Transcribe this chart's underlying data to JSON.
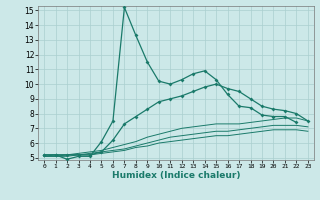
{
  "x": [
    0,
    1,
    2,
    3,
    4,
    5,
    6,
    7,
    8,
    9,
    10,
    11,
    12,
    13,
    14,
    15,
    16,
    17,
    18,
    19,
    20,
    21,
    22,
    23
  ],
  "line1": [
    5.2,
    5.2,
    4.9,
    5.1,
    5.1,
    6.1,
    7.5,
    15.2,
    13.3,
    11.5,
    10.2,
    10.0,
    10.3,
    10.7,
    10.9,
    10.3,
    9.3,
    8.5,
    8.4,
    7.9,
    7.8,
    7.8,
    7.4,
    null
  ],
  "line2": [
    5.2,
    5.2,
    5.2,
    5.2,
    5.2,
    5.4,
    6.2,
    7.3,
    7.8,
    8.3,
    8.8,
    9.0,
    9.2,
    9.5,
    9.8,
    10.0,
    9.7,
    9.5,
    9.0,
    8.5,
    8.3,
    8.2,
    8.0,
    7.5
  ],
  "line3": [
    5.1,
    5.2,
    5.2,
    5.3,
    5.4,
    5.5,
    5.7,
    5.9,
    6.1,
    6.4,
    6.6,
    6.8,
    7.0,
    7.1,
    7.2,
    7.3,
    7.3,
    7.3,
    7.4,
    7.5,
    7.6,
    7.7,
    7.7,
    7.5
  ],
  "line4": [
    5.1,
    5.1,
    5.2,
    5.2,
    5.3,
    5.4,
    5.5,
    5.6,
    5.8,
    6.0,
    6.2,
    6.4,
    6.5,
    6.6,
    6.7,
    6.8,
    6.8,
    6.9,
    7.0,
    7.1,
    7.2,
    7.2,
    7.2,
    7.1
  ],
  "line5": [
    5.1,
    5.1,
    5.1,
    5.2,
    5.2,
    5.3,
    5.4,
    5.5,
    5.7,
    5.8,
    6.0,
    6.1,
    6.2,
    6.3,
    6.4,
    6.5,
    6.5,
    6.6,
    6.7,
    6.8,
    6.9,
    6.9,
    6.9,
    6.8
  ],
  "color": "#1a7a6a",
  "bg_color": "#cce8e8",
  "grid_color": "#aacfcf",
  "ylim": [
    5,
    15
  ],
  "xlim": [
    0,
    23
  ],
  "yticks": [
    5,
    6,
    7,
    8,
    9,
    10,
    11,
    12,
    13,
    14,
    15
  ],
  "xticks": [
    0,
    1,
    2,
    3,
    4,
    5,
    6,
    7,
    8,
    9,
    10,
    11,
    12,
    13,
    14,
    15,
    16,
    17,
    18,
    19,
    20,
    21,
    22,
    23
  ],
  "xlabel": "Humidex (Indice chaleur)",
  "marker_size": 2.0,
  "lw_main": 0.9,
  "lw_smooth": 0.7
}
